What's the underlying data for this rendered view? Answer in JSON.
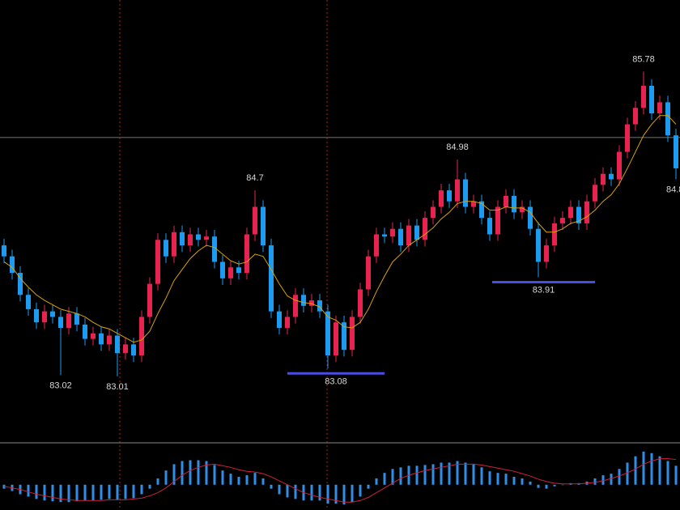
{
  "chart_data": {
    "type": "candlestick",
    "ylim": [
      82.42,
      86.43
    ],
    "up_color": "#e8234f",
    "down_color": "#1d9bf0",
    "ma_color": "#d9a400",
    "hline": 85.18,
    "open": [
      84.2,
      84.1,
      83.95,
      83.75,
      83.62,
      83.5,
      83.6,
      83.55,
      83.45,
      83.58,
      83.48,
      83.35,
      83.4,
      83.3,
      83.38,
      83.22,
      83.3,
      83.2,
      83.55,
      83.85,
      84.25,
      84.1,
      84.32,
      84.2,
      84.3,
      84.25,
      84.28,
      84.05,
      83.9,
      84.0,
      83.95,
      84.3,
      84.55,
      84.2,
      83.6,
      83.45,
      83.55,
      83.75,
      83.65,
      83.7,
      83.6,
      83.2,
      83.5,
      83.25,
      83.55,
      83.8,
      84.1,
      84.3,
      84.28,
      84.35,
      84.2,
      84.38,
      84.25,
      84.45,
      84.55,
      84.7,
      84.6,
      84.8,
      84.55,
      84.6,
      84.45,
      84.3,
      84.55,
      84.65,
      84.5,
      84.55,
      84.35,
      84.05,
      84.2,
      84.4,
      84.45,
      84.55,
      84.4,
      84.6,
      84.75,
      84.85,
      84.8,
      85.05,
      85.3,
      85.45,
      85.65,
      85.4,
      85.5,
      85.2
    ],
    "high": [
      84.26,
      84.16,
      84.01,
      83.81,
      83.68,
      83.66,
      83.66,
      83.61,
      83.64,
      83.64,
      83.54,
      83.46,
      83.46,
      83.44,
      83.44,
      83.36,
      83.36,
      83.61,
      83.91,
      84.31,
      84.31,
      84.38,
      84.38,
      84.36,
      84.36,
      84.34,
      84.34,
      84.11,
      84.06,
      84.06,
      84.36,
      84.7,
      84.61,
      84.26,
      83.66,
      83.61,
      83.81,
      83.81,
      83.76,
      83.76,
      83.66,
      83.56,
      83.56,
      83.61,
      83.86,
      84.16,
      84.36,
      84.36,
      84.41,
      84.41,
      84.44,
      84.44,
      84.51,
      84.61,
      84.76,
      84.76,
      84.98,
      84.86,
      84.66,
      84.66,
      84.51,
      84.61,
      84.71,
      84.71,
      84.61,
      84.61,
      84.41,
      84.26,
      84.46,
      84.51,
      84.61,
      84.61,
      84.66,
      84.81,
      84.91,
      84.91,
      85.11,
      85.36,
      85.51,
      85.78,
      85.71,
      85.56,
      85.56,
      85.26
    ],
    "low": [
      84.04,
      83.89,
      83.69,
      83.56,
      83.44,
      83.44,
      83.49,
      83.02,
      83.39,
      83.42,
      83.29,
      83.29,
      83.24,
      83.24,
      83.01,
      83.16,
      83.14,
      83.14,
      83.49,
      83.79,
      84.04,
      84.04,
      84.14,
      84.14,
      84.19,
      84.19,
      83.99,
      83.84,
      83.84,
      83.89,
      83.89,
      84.24,
      84.14,
      83.54,
      83.39,
      83.39,
      83.49,
      83.59,
      83.59,
      83.54,
      83.08,
      83.14,
      83.19,
      83.19,
      83.49,
      83.74,
      84.04,
      84.22,
      84.22,
      84.14,
      84.14,
      84.19,
      84.19,
      84.39,
      84.49,
      84.54,
      84.54,
      84.49,
      84.49,
      84.39,
      84.24,
      84.24,
      84.49,
      84.44,
      84.44,
      84.29,
      83.91,
      83.99,
      84.14,
      84.34,
      84.39,
      84.34,
      84.34,
      84.54,
      84.69,
      84.74,
      84.74,
      84.99,
      85.24,
      85.39,
      85.34,
      85.34,
      85.14,
      84.8
    ],
    "close": [
      84.1,
      83.95,
      83.75,
      83.62,
      83.5,
      83.6,
      83.55,
      83.45,
      83.58,
      83.48,
      83.35,
      83.4,
      83.3,
      83.38,
      83.22,
      83.3,
      83.2,
      83.55,
      83.85,
      84.25,
      84.1,
      84.32,
      84.2,
      84.3,
      84.25,
      84.28,
      84.05,
      83.9,
      84.0,
      83.95,
      84.3,
      84.55,
      84.2,
      83.6,
      83.45,
      83.55,
      83.75,
      83.65,
      83.7,
      83.6,
      83.2,
      83.5,
      83.25,
      83.55,
      83.8,
      84.1,
      84.3,
      84.28,
      84.35,
      84.2,
      84.38,
      84.25,
      84.45,
      84.55,
      84.7,
      84.6,
      84.8,
      84.55,
      84.6,
      84.45,
      84.3,
      84.55,
      84.65,
      84.5,
      84.55,
      84.35,
      84.05,
      84.2,
      84.4,
      84.45,
      84.55,
      84.4,
      84.6,
      84.75,
      84.85,
      84.8,
      85.05,
      85.3,
      85.45,
      85.65,
      85.4,
      85.5,
      85.2,
      84.9
    ],
    "ma": [
      84.05,
      84.0,
      83.9,
      83.82,
      83.75,
      83.7,
      83.66,
      83.62,
      83.6,
      83.58,
      83.55,
      83.5,
      83.46,
      83.44,
      83.4,
      83.36,
      83.32,
      83.34,
      83.42,
      83.58,
      83.72,
      83.88,
      83.98,
      84.08,
      84.15,
      84.2,
      84.18,
      84.12,
      84.06,
      84.03,
      84.05,
      84.12,
      84.1,
      83.98,
      83.85,
      83.74,
      83.7,
      83.68,
      83.67,
      83.64,
      83.55,
      83.52,
      83.46,
      83.45,
      83.5,
      83.62,
      83.78,
      83.92,
      84.05,
      84.12,
      84.2,
      84.25,
      84.3,
      84.36,
      84.44,
      84.5,
      84.58,
      84.6,
      84.6,
      84.58,
      84.52,
      84.52,
      84.55,
      84.54,
      84.54,
      84.5,
      84.4,
      84.32,
      84.32,
      84.35,
      84.4,
      84.42,
      84.46,
      84.52,
      84.6,
      84.66,
      84.76,
      84.9,
      85.05,
      85.2,
      85.3,
      85.38,
      85.38,
      85.3
    ],
    "macd": {
      "ylim": [
        -0.32,
        0.5
      ],
      "bar_color": "#2f8fe8",
      "signal_color": "#d0203a",
      "histogram": [
        -0.05,
        -0.08,
        -0.12,
        -0.15,
        -0.18,
        -0.2,
        -0.21,
        -0.22,
        -0.22,
        -0.21,
        -0.2,
        -0.2,
        -0.19,
        -0.18,
        -0.19,
        -0.18,
        -0.17,
        -0.12,
        -0.05,
        0.08,
        0.18,
        0.26,
        0.3,
        0.31,
        0.31,
        0.3,
        0.25,
        0.18,
        0.14,
        0.1,
        0.12,
        0.15,
        0.08,
        -0.05,
        -0.12,
        -0.16,
        -0.18,
        -0.2,
        -0.2,
        -0.2,
        -0.24,
        -0.24,
        -0.25,
        -0.22,
        -0.15,
        -0.05,
        0.08,
        0.15,
        0.2,
        0.22,
        0.24,
        0.24,
        0.25,
        0.26,
        0.28,
        0.28,
        0.3,
        0.28,
        0.26,
        0.22,
        0.17,
        0.15,
        0.14,
        0.1,
        0.08,
        0.04,
        -0.04,
        -0.05,
        -0.02,
        0,
        0.02,
        0.02,
        0.04,
        0.08,
        0.12,
        0.14,
        0.2,
        0.28,
        0.36,
        0.42,
        0.4,
        0.36,
        0.3,
        0.24
      ],
      "signal": [
        -0.02,
        -0.04,
        -0.06,
        -0.09,
        -0.12,
        -0.14,
        -0.16,
        -0.18,
        -0.19,
        -0.2,
        -0.2,
        -0.2,
        -0.2,
        -0.19,
        -0.19,
        -0.19,
        -0.18,
        -0.17,
        -0.14,
        -0.1,
        -0.04,
        0.04,
        0.12,
        0.18,
        0.22,
        0.25,
        0.26,
        0.24,
        0.22,
        0.19,
        0.17,
        0.16,
        0.14,
        0.1,
        0.05,
        0,
        -0.05,
        -0.1,
        -0.13,
        -0.16,
        -0.18,
        -0.2,
        -0.22,
        -0.22,
        -0.2,
        -0.16,
        -0.1,
        -0.04,
        0.02,
        0.08,
        0.12,
        0.15,
        0.18,
        0.2,
        0.22,
        0.24,
        0.26,
        0.26,
        0.26,
        0.25,
        0.23,
        0.21,
        0.19,
        0.17,
        0.14,
        0.11,
        0.07,
        0.04,
        0.02,
        0.01,
        0.01,
        0.01,
        0.02,
        0.03,
        0.05,
        0.08,
        0.11,
        0.15,
        0.2,
        0.26,
        0.3,
        0.33,
        0.33,
        0.32
      ]
    }
  }
}
